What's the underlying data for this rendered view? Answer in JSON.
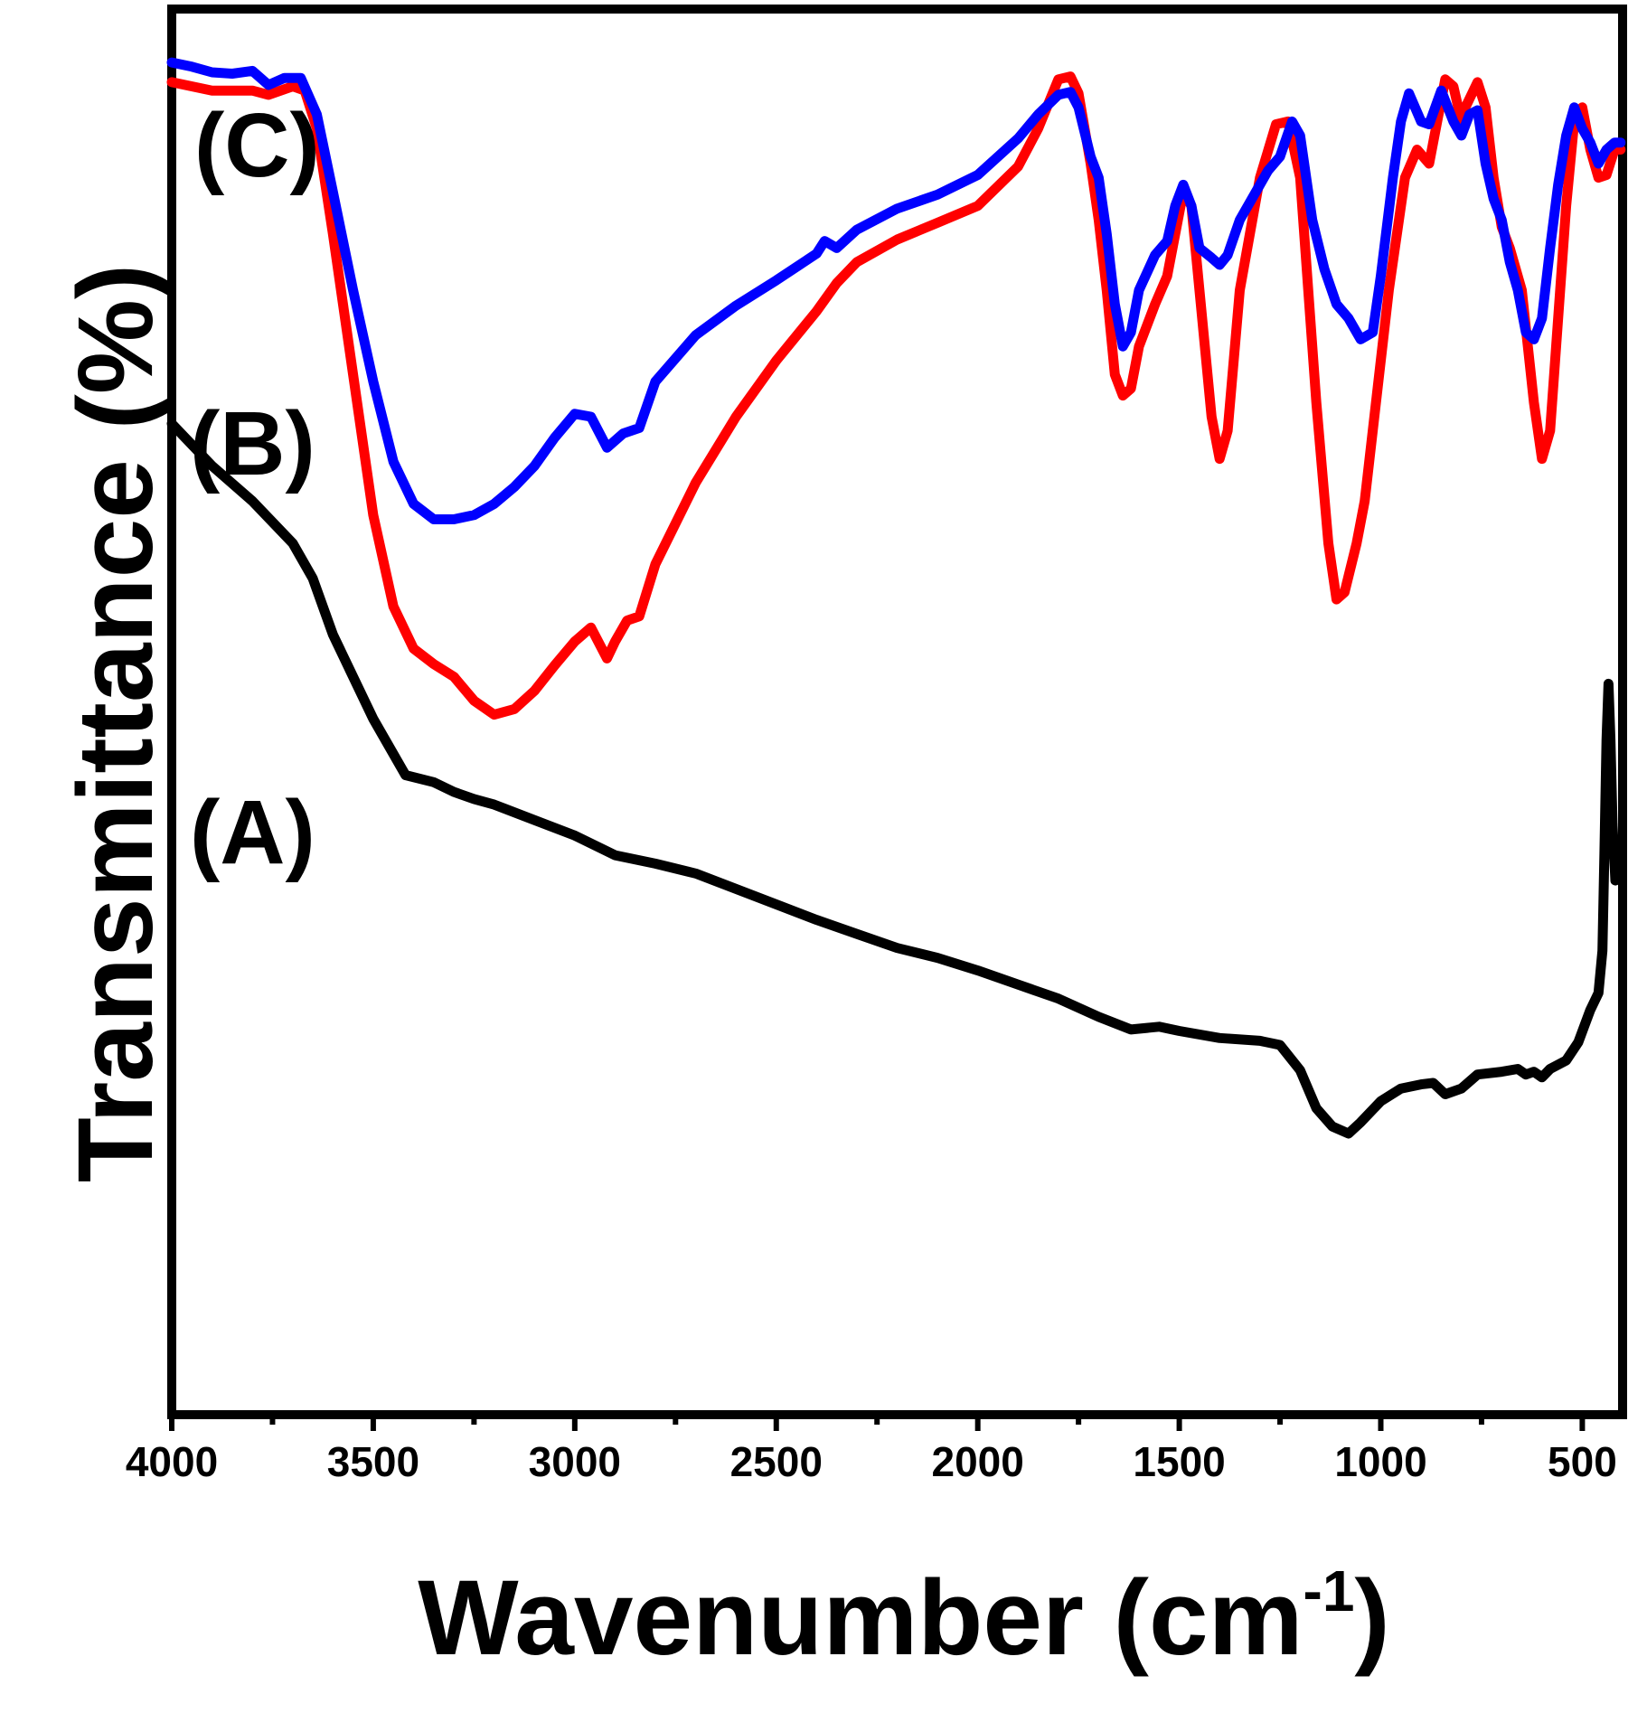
{
  "chart_data": {
    "type": "line",
    "title": "",
    "xlabel_main": "Wavenumber (cm",
    "xlabel_sup": "-1",
    "xlabel_close": ")",
    "ylabel": "Transmittance (%)",
    "xlim": [
      4000,
      400
    ],
    "ylim": [
      0,
      100
    ],
    "grid": false,
    "x_ticks": [
      4000,
      3500,
      3000,
      2500,
      2000,
      1500,
      1000,
      500
    ],
    "x_tick_labels": [
      "4000",
      "3500",
      "3000",
      "2500",
      "2000",
      "1500",
      "1000",
      "500"
    ],
    "series": [
      {
        "name": "(A)",
        "color": "#000000",
        "points": [
          [
            4000,
            70.5
          ],
          [
            3900,
            67.5
          ],
          [
            3800,
            65
          ],
          [
            3700,
            62
          ],
          [
            3650,
            59.5
          ],
          [
            3600,
            55.5
          ],
          [
            3500,
            49.5
          ],
          [
            3420,
            45.5
          ],
          [
            3350,
            45
          ],
          [
            3300,
            44.3
          ],
          [
            3250,
            43.8
          ],
          [
            3200,
            43.4
          ],
          [
            3100,
            42.3
          ],
          [
            3000,
            41.2
          ],
          [
            2900,
            39.8
          ],
          [
            2800,
            39.2
          ],
          [
            2700,
            38.5
          ],
          [
            2600,
            37.4
          ],
          [
            2500,
            36.3
          ],
          [
            2400,
            35.2
          ],
          [
            2300,
            34.2
          ],
          [
            2200,
            33.2
          ],
          [
            2100,
            32.5
          ],
          [
            2000,
            31.6
          ],
          [
            1900,
            30.6
          ],
          [
            1800,
            29.6
          ],
          [
            1700,
            28.3
          ],
          [
            1620,
            27.4
          ],
          [
            1550,
            27.6
          ],
          [
            1500,
            27.3
          ],
          [
            1400,
            26.8
          ],
          [
            1300,
            26.6
          ],
          [
            1250,
            26.3
          ],
          [
            1200,
            24.5
          ],
          [
            1160,
            21.8
          ],
          [
            1120,
            20.5
          ],
          [
            1080,
            20
          ],
          [
            1050,
            20.8
          ],
          [
            1000,
            22.3
          ],
          [
            950,
            23.2
          ],
          [
            900,
            23.5
          ],
          [
            870,
            23.6
          ],
          [
            840,
            22.8
          ],
          [
            800,
            23.2
          ],
          [
            760,
            24.2
          ],
          [
            700,
            24.4
          ],
          [
            660,
            24.6
          ],
          [
            640,
            24.2
          ],
          [
            620,
            24.4
          ],
          [
            600,
            24
          ],
          [
            580,
            24.6
          ],
          [
            540,
            25.2
          ],
          [
            510,
            26.5
          ],
          [
            480,
            28.8
          ],
          [
            460,
            30
          ],
          [
            450,
            33
          ],
          [
            445,
            40
          ],
          [
            440,
            48
          ],
          [
            435,
            52
          ],
          [
            430,
            48
          ],
          [
            425,
            42
          ],
          [
            418,
            38
          ],
          [
            415,
            40
          ]
        ]
      },
      {
        "name": "(B)",
        "color": "#ff0000",
        "points": [
          [
            4000,
            94.8
          ],
          [
            3900,
            94.2
          ],
          [
            3800,
            94.2
          ],
          [
            3760,
            93.9
          ],
          [
            3700,
            94.5
          ],
          [
            3670,
            94.2
          ],
          [
            3640,
            91.5
          ],
          [
            3600,
            84
          ],
          [
            3550,
            74
          ],
          [
            3500,
            64
          ],
          [
            3450,
            57.5
          ],
          [
            3400,
            54.5
          ],
          [
            3350,
            53.4
          ],
          [
            3300,
            52.5
          ],
          [
            3250,
            50.8
          ],
          [
            3200,
            49.8
          ],
          [
            3150,
            50.2
          ],
          [
            3100,
            51.5
          ],
          [
            3050,
            53.3
          ],
          [
            3000,
            55
          ],
          [
            2960,
            56
          ],
          [
            2920,
            53.8
          ],
          [
            2900,
            55
          ],
          [
            2870,
            56.5
          ],
          [
            2840,
            56.8
          ],
          [
            2800,
            60.5
          ],
          [
            2700,
            66.3
          ],
          [
            2600,
            71
          ],
          [
            2500,
            75
          ],
          [
            2400,
            78.5
          ],
          [
            2350,
            80.5
          ],
          [
            2300,
            82
          ],
          [
            2200,
            83.6
          ],
          [
            2100,
            84.8
          ],
          [
            2000,
            86
          ],
          [
            1900,
            88.8
          ],
          [
            1850,
            91.5
          ],
          [
            1800,
            95
          ],
          [
            1770,
            95.2
          ],
          [
            1750,
            94
          ],
          [
            1720,
            89
          ],
          [
            1700,
            85
          ],
          [
            1680,
            80
          ],
          [
            1660,
            74
          ],
          [
            1640,
            72.5
          ],
          [
            1620,
            73
          ],
          [
            1600,
            76
          ],
          [
            1560,
            79
          ],
          [
            1530,
            81
          ],
          [
            1510,
            84
          ],
          [
            1490,
            87
          ],
          [
            1470,
            86
          ],
          [
            1450,
            80
          ],
          [
            1420,
            71
          ],
          [
            1400,
            68
          ],
          [
            1380,
            70
          ],
          [
            1350,
            80
          ],
          [
            1300,
            88
          ],
          [
            1260,
            91.8
          ],
          [
            1230,
            92
          ],
          [
            1200,
            88
          ],
          [
            1160,
            72
          ],
          [
            1130,
            62
          ],
          [
            1110,
            58
          ],
          [
            1090,
            58.5
          ],
          [
            1060,
            62
          ],
          [
            1040,
            65
          ],
          [
            1000,
            75
          ],
          [
            980,
            80
          ],
          [
            940,
            88
          ],
          [
            910,
            90
          ],
          [
            880,
            89
          ],
          [
            860,
            92
          ],
          [
            840,
            95
          ],
          [
            820,
            94.5
          ],
          [
            800,
            92
          ],
          [
            790,
            93
          ],
          [
            760,
            94.8
          ],
          [
            740,
            93
          ],
          [
            720,
            88
          ],
          [
            700,
            84.5
          ],
          [
            680,
            83
          ],
          [
            650,
            80
          ],
          [
            620,
            72
          ],
          [
            600,
            68
          ],
          [
            580,
            70
          ],
          [
            560,
            78
          ],
          [
            540,
            86
          ],
          [
            520,
            92
          ],
          [
            500,
            93
          ],
          [
            480,
            90
          ],
          [
            460,
            88
          ],
          [
            440,
            88.2
          ],
          [
            420,
            90
          ],
          [
            405,
            90
          ]
        ]
      },
      {
        "name": "(C)",
        "color": "#0000ff",
        "points": [
          [
            4000,
            96.2
          ],
          [
            3950,
            95.9
          ],
          [
            3900,
            95.5
          ],
          [
            3850,
            95.4
          ],
          [
            3800,
            95.6
          ],
          [
            3760,
            94.6
          ],
          [
            3720,
            95.1
          ],
          [
            3680,
            95.1
          ],
          [
            3640,
            92.5
          ],
          [
            3600,
            87
          ],
          [
            3550,
            80
          ],
          [
            3500,
            73.5
          ],
          [
            3450,
            67.8
          ],
          [
            3400,
            64.8
          ],
          [
            3350,
            63.7
          ],
          [
            3300,
            63.7
          ],
          [
            3250,
            64
          ],
          [
            3200,
            64.8
          ],
          [
            3150,
            66
          ],
          [
            3100,
            67.5
          ],
          [
            3050,
            69.5
          ],
          [
            3000,
            71.2
          ],
          [
            2960,
            71
          ],
          [
            2920,
            68.8
          ],
          [
            2880,
            69.8
          ],
          [
            2840,
            70.2
          ],
          [
            2800,
            73.5
          ],
          [
            2700,
            76.8
          ],
          [
            2600,
            78.9
          ],
          [
            2500,
            80.7
          ],
          [
            2400,
            82.6
          ],
          [
            2380,
            83.5
          ],
          [
            2350,
            83
          ],
          [
            2300,
            84.3
          ],
          [
            2200,
            85.8
          ],
          [
            2100,
            86.8
          ],
          [
            2000,
            88.2
          ],
          [
            1900,
            90.8
          ],
          [
            1850,
            92.5
          ],
          [
            1800,
            93.9
          ],
          [
            1770,
            94.1
          ],
          [
            1750,
            93
          ],
          [
            1720,
            89.5
          ],
          [
            1700,
            88
          ],
          [
            1680,
            84
          ],
          [
            1660,
            79
          ],
          [
            1640,
            76
          ],
          [
            1620,
            77
          ],
          [
            1600,
            80
          ],
          [
            1560,
            82.5
          ],
          [
            1530,
            83.5
          ],
          [
            1510,
            86
          ],
          [
            1490,
            87.5
          ],
          [
            1470,
            86
          ],
          [
            1450,
            83
          ],
          [
            1420,
            82.3
          ],
          [
            1400,
            81.8
          ],
          [
            1380,
            82.5
          ],
          [
            1350,
            85
          ],
          [
            1300,
            87.5
          ],
          [
            1280,
            88.5
          ],
          [
            1250,
            89.5
          ],
          [
            1220,
            92
          ],
          [
            1200,
            91
          ],
          [
            1170,
            85
          ],
          [
            1140,
            81.5
          ],
          [
            1110,
            79
          ],
          [
            1080,
            78
          ],
          [
            1050,
            76.5
          ],
          [
            1020,
            77
          ],
          [
            1000,
            81
          ],
          [
            970,
            88
          ],
          [
            950,
            92
          ],
          [
            930,
            94
          ],
          [
            900,
            92
          ],
          [
            880,
            91.8
          ],
          [
            850,
            94.2
          ],
          [
            820,
            92
          ],
          [
            800,
            91
          ],
          [
            780,
            92.5
          ],
          [
            760,
            92.8
          ],
          [
            740,
            89
          ],
          [
            720,
            86.5
          ],
          [
            700,
            85
          ],
          [
            680,
            82
          ],
          [
            660,
            80
          ],
          [
            640,
            77
          ],
          [
            620,
            76.5
          ],
          [
            600,
            78
          ],
          [
            580,
            83
          ],
          [
            560,
            87.5
          ],
          [
            540,
            91
          ],
          [
            520,
            93
          ],
          [
            500,
            91.5
          ],
          [
            480,
            90.5
          ],
          [
            460,
            89
          ],
          [
            440,
            90
          ],
          [
            420,
            90.5
          ],
          [
            405,
            90.5
          ]
        ]
      }
    ],
    "annotations": [
      {
        "text": "(C)"
      },
      {
        "text": "(B)"
      },
      {
        "text": "(A)"
      }
    ]
  }
}
